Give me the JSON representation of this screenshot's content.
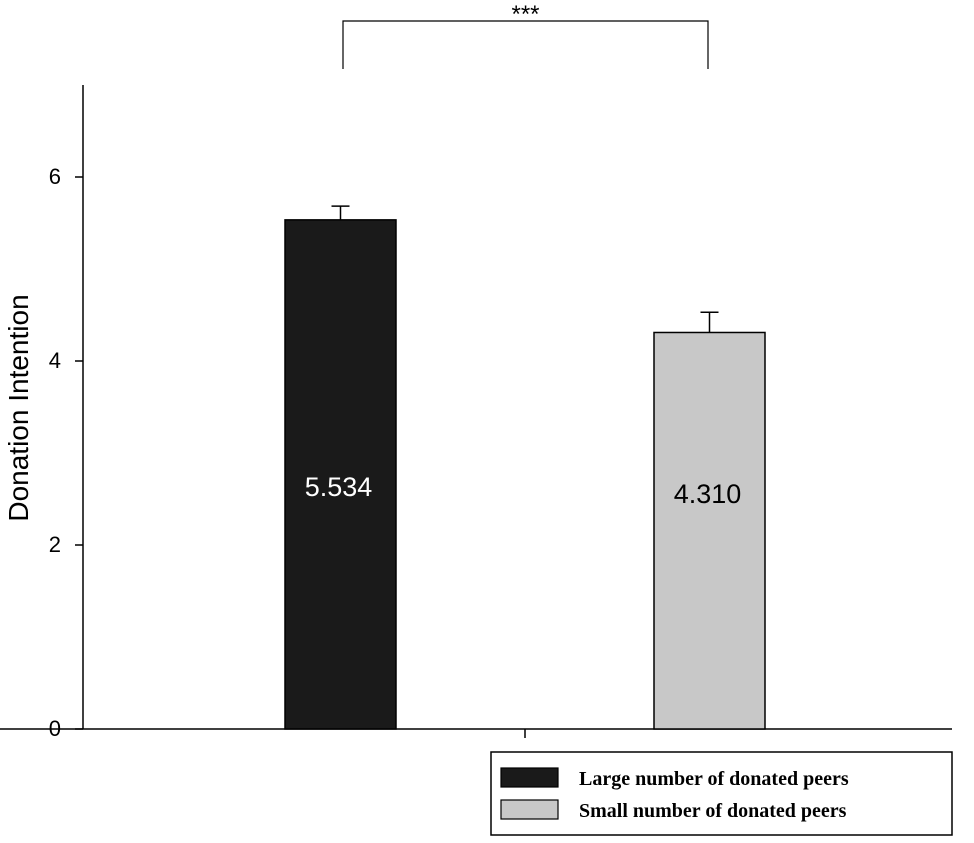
{
  "chart_data": {
    "type": "bar",
    "title": "",
    "xlabel": "",
    "ylabel": "Donation Intention",
    "ylim": [
      0,
      7
    ],
    "yticks": [
      0,
      2,
      4,
      6
    ],
    "grid": false,
    "legend_position": "bottom-right",
    "series": [
      {
        "name": "Large number of donated peers",
        "value": 5.534,
        "error": 0.15,
        "label": "5.534",
        "color": "#1a1a1a",
        "label_color": "#ffffff"
      },
      {
        "name": "Small number of donated peers",
        "value": 4.31,
        "error": 0.22,
        "label": "4.310",
        "color": "#c8c8c8",
        "label_color": "#000000"
      }
    ],
    "significance": {
      "label": "***",
      "between": [
        0,
        1
      ]
    }
  }
}
